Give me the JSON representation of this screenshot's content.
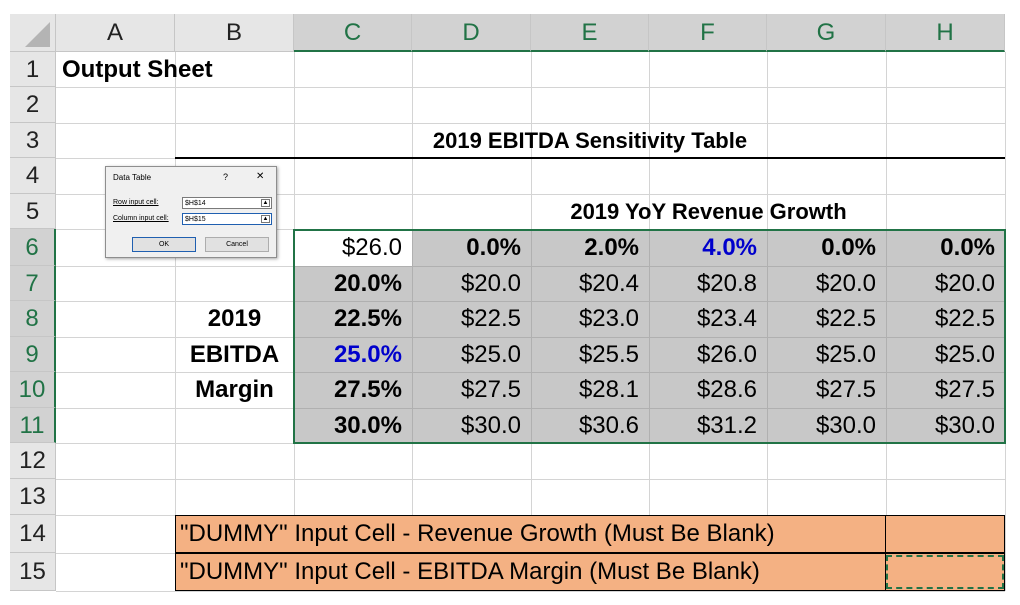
{
  "corner": "",
  "columns": [
    "A",
    "B",
    "C",
    "D",
    "E",
    "F",
    "G",
    "H"
  ],
  "rows": [
    "1",
    "2",
    "3",
    "4",
    "5",
    "6",
    "7",
    "8",
    "9",
    "10",
    "11",
    "12",
    "13",
    "14",
    "15"
  ],
  "cells": {
    "output_title": "Output Sheet",
    "table_title": "2019 EBITDA Sensitivity Table",
    "growth_header": "2019 YoY Revenue Growth",
    "corner_value": "$26.0",
    "growth_values": [
      "0.0%",
      "2.0%",
      "4.0%",
      "0.0%",
      "0.0%"
    ],
    "margin_values": [
      "20.0%",
      "22.5%",
      "25.0%",
      "27.5%",
      "30.0%"
    ],
    "side_label": [
      "2019",
      "EBITDA",
      "Margin"
    ],
    "results": [
      [
        "$20.0",
        "$20.4",
        "$20.8",
        "$20.0",
        "$20.0"
      ],
      [
        "$22.5",
        "$23.0",
        "$23.4",
        "$22.5",
        "$22.5"
      ],
      [
        "$25.0",
        "$25.5",
        "$26.0",
        "$25.0",
        "$25.0"
      ],
      [
        "$27.5",
        "$28.1",
        "$28.6",
        "$27.5",
        "$27.5"
      ],
      [
        "$30.0",
        "$30.6",
        "$31.2",
        "$30.0",
        "$30.0"
      ]
    ],
    "dummy_row14": "\"DUMMY\" Input Cell - Revenue Growth (Must Be Blank)",
    "dummy_row15": "\"DUMMY\" Input Cell - EBITDA Margin (Must Be Blank)"
  },
  "dialog": {
    "title": "Data Table",
    "help": "?",
    "close": "✕",
    "row_label": "Row input cell:",
    "row_value": "$H$14",
    "col_label": "Column input cell:",
    "col_value": "$H$15",
    "ok": "OK",
    "cancel": "Cancel"
  },
  "colors": {
    "accent": "#217346",
    "gray_fill": "#c8c8c8",
    "orange_fill": "#f4b183",
    "blue_text": "#0000cc"
  }
}
